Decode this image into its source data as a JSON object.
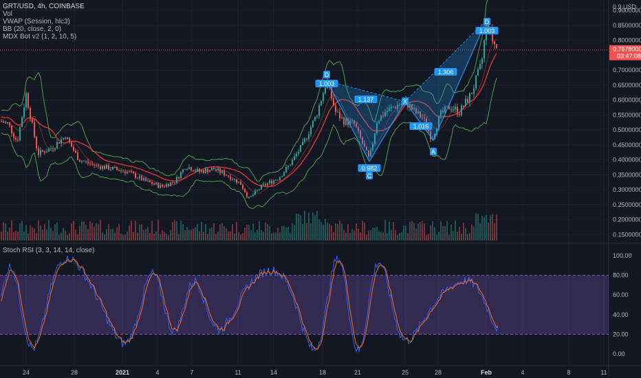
{
  "header": {
    "symbol_line": "GRT/USD, 4h, COINBASE",
    "indicators": [
      "Vol",
      "VWAP (Session, hlc3)",
      "BB (20, close, 2, 0)",
      "MDX Bot v2 (1, 2, 10, 5)"
    ]
  },
  "rsi_title": "Stoch RSI (3, 3, 14, 14, close)",
  "price_axis": {
    "unit": "USD",
    "ticks": [
      "0.90000000",
      "0.85000000",
      "0.80000000",
      "0.70000000",
      "0.65000000",
      "0.60000000",
      "0.55000000",
      "0.50000000",
      "0.45000000",
      "0.40000000",
      "0.35000000",
      "0.30000000",
      "0.25000000",
      "0.20000000",
      "0.15000000"
    ],
    "tick_values": [
      0.9,
      0.85,
      0.8,
      0.7,
      0.65,
      0.6,
      0.55,
      0.5,
      0.45,
      0.4,
      0.35,
      0.3,
      0.25,
      0.2,
      0.15
    ],
    "top_label": "0.9 USD",
    "last_price": "0.76780000",
    "last_price_value": 0.7678,
    "countdown": "03:47:08"
  },
  "rsi_axis": {
    "ticks": [
      "100.00",
      "80.00",
      "60.00",
      "40.00",
      "20.00",
      "0.00"
    ],
    "tick_values": [
      100,
      80,
      60,
      40,
      20,
      0
    ],
    "band": [
      20,
      80
    ]
  },
  "time_axis": {
    "labels": [
      "24",
      "28",
      "2021",
      "4",
      "7",
      "11",
      "14",
      "18",
      "21",
      "25",
      "28",
      "Feb",
      "4",
      "8",
      "11"
    ],
    "bold": [
      "2021",
      "Feb"
    ]
  },
  "pattern_labels": [
    {
      "text": "D",
      "value": "1.003"
    },
    {
      "text": "",
      "value": "1.137"
    },
    {
      "text": "",
      "value": "0.982"
    },
    {
      "text": "C",
      "value": ""
    },
    {
      "text": "X",
      "value": ""
    },
    {
      "text": "",
      "value": "1.016"
    },
    {
      "text": "A",
      "value": ""
    },
    {
      "text": "",
      "value": "1.306"
    },
    {
      "text": "D",
      "value": "1.003"
    }
  ],
  "colors": {
    "background": "#131722",
    "up": "#26a69a",
    "down": "#ef5350",
    "bollinger": "#4caf50",
    "mdx": "#e53935",
    "pattern": "#2196f3",
    "rsi_k": "#2962ff",
    "rsi_d": "#ff6d00",
    "rsi_band": "#7e57c2"
  },
  "chart_data": {
    "type": "candlestick",
    "symbol": "GRT/USD",
    "interval": "4h",
    "y_range": [
      0.13,
      0.935
    ],
    "last_price": 0.7678,
    "harmonic_points": [
      {
        "label": "D",
        "price": 0.665
      },
      {
        "label": "",
        "price": 0.617
      },
      {
        "label": "C",
        "price": 0.395
      },
      {
        "label": "X",
        "price": 0.595
      },
      {
        "label": "",
        "price": 0.55
      },
      {
        "label": "A",
        "price": 0.465
      },
      {
        "label": "",
        "price": 0.71
      },
      {
        "label": "D",
        "price": 0.87
      }
    ],
    "stoch_rsi_range": [
      0,
      100
    ],
    "stoch_rsi_levels": [
      20,
      80
    ]
  }
}
